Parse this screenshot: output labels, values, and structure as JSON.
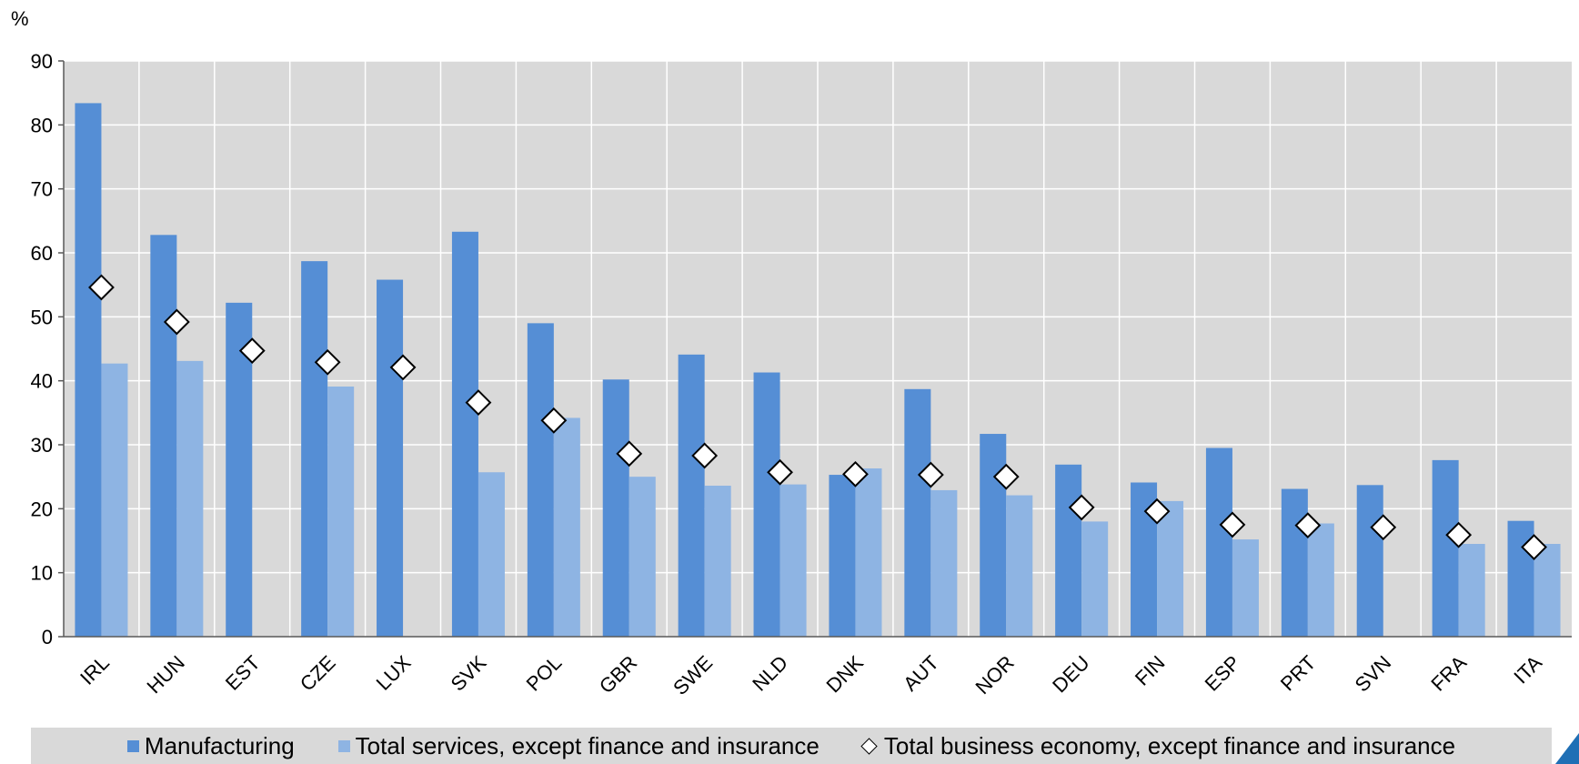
{
  "chart_data": {
    "type": "bar",
    "unit_label": "%",
    "categories": [
      "IRL",
      "HUN",
      "EST",
      "CZE",
      "LUX",
      "SVK",
      "POL",
      "GBR",
      "SWE",
      "NLD",
      "DNK",
      "AUT",
      "NOR",
      "DEU",
      "FIN",
      "ESP",
      "PRT",
      "SVN",
      "FRA",
      "ITA"
    ],
    "series": [
      {
        "name": "Manufacturing",
        "kind": "bar",
        "color": "#558ed5",
        "values": [
          83.4,
          62.8,
          52.2,
          58.7,
          55.8,
          63.3,
          49.0,
          40.2,
          44.1,
          41.3,
          25.3,
          38.7,
          31.7,
          26.9,
          24.1,
          29.5,
          23.1,
          23.7,
          27.6,
          18.1
        ]
      },
      {
        "name": "Total services, except finance and insurance",
        "kind": "bar",
        "color": "#8eb4e3",
        "values": [
          42.7,
          43.1,
          null,
          39.1,
          null,
          25.7,
          34.2,
          25.0,
          23.6,
          23.8,
          26.3,
          22.9,
          22.1,
          18.0,
          21.2,
          15.2,
          17.7,
          null,
          14.5,
          14.5
        ]
      },
      {
        "name": "Total business economy, except finance and insurance",
        "kind": "marker",
        "color": "#ffffff",
        "values": [
          54.6,
          49.2,
          44.7,
          42.9,
          42.1,
          36.6,
          33.8,
          28.6,
          28.3,
          25.7,
          25.4,
          25.3,
          25.0,
          20.2,
          19.6,
          17.5,
          17.4,
          17.1,
          15.9,
          14.0
        ]
      }
    ],
    "yticks": [
      0,
      10,
      20,
      30,
      40,
      50,
      60,
      70,
      80,
      90
    ],
    "ylim": [
      0,
      90
    ],
    "grid": true,
    "legend_position": "bottom"
  }
}
